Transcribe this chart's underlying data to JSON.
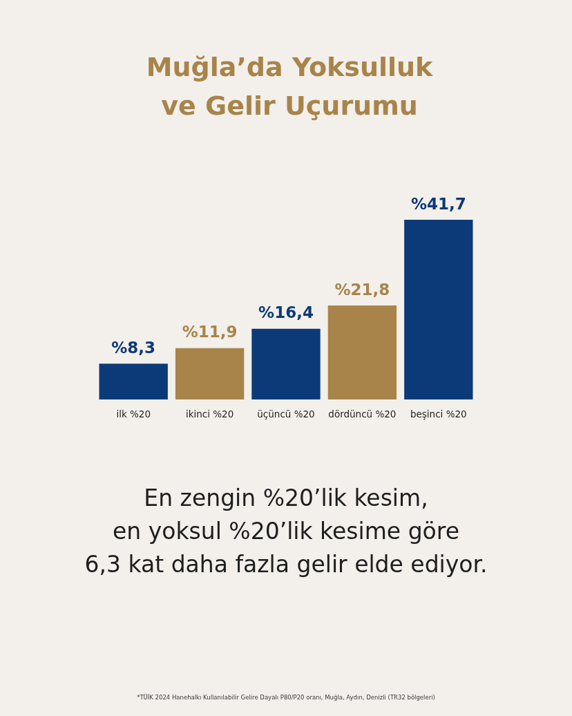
{
  "chart_data": {
    "type": "bar",
    "title": "Muğla’da Yoksulluk\nve Gelir Uçurumu",
    "categories": [
      "ilk %20",
      "ikinci %20",
      "üçüncü %20",
      "dördüncü %20",
      "beşinci %20"
    ],
    "values": [
      8.3,
      11.9,
      16.4,
      21.8,
      41.7
    ],
    "colors": [
      "#0c3a78",
      "#a8844a",
      "#0c3a78",
      "#a8844a",
      "#0c3a78"
    ],
    "value_labels": [
      "%8,3",
      "%11,9",
      "%16,4",
      "%21,8",
      "%41,7"
    ],
    "annotations": [
      "En zengin %20’lik kesim,\nen yoksul %20’lik kesime göre\n6,3 kat daha fazla gelir elde ediyor.",
      "*TÜİK 2024 Hanehalkı Kullanılabilir Gelire Dayalı P80/P20 oranı, Muğla, Aydın, Denizli (TR32 bölgeleri)"
    ]
  }
}
